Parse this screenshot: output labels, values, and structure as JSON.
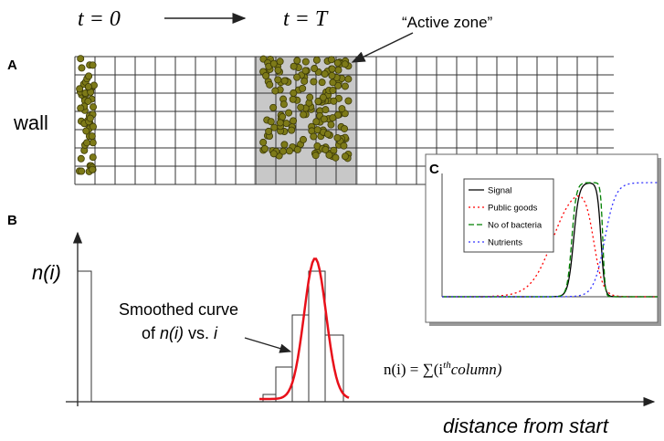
{
  "header": {
    "t_start": "t = 0",
    "t_end": "t = T",
    "active_zone": "“Active zone”"
  },
  "panel_a": {
    "label": "A",
    "wall": "wall"
  },
  "panel_b": {
    "label": "B",
    "y_label": "n(i)",
    "curve_note_line1": "Smoothed curve",
    "curve_note_line2": [
      "of ",
      "n(i)",
      " vs. ",
      "i"
    ],
    "formula": [
      "n(i) = ∑(i",
      "th",
      "column)"
    ],
    "x_label": "distance from start"
  },
  "panel_c": {
    "label": "C",
    "legend": [
      {
        "name": "Signal",
        "color": "#000000"
      },
      {
        "name": "Public goods",
        "color": "#ff0000"
      },
      {
        "name": "No of bacteria",
        "color": "#008000"
      },
      {
        "name": "Nutrients",
        "color": "#3333ff"
      }
    ]
  }
}
